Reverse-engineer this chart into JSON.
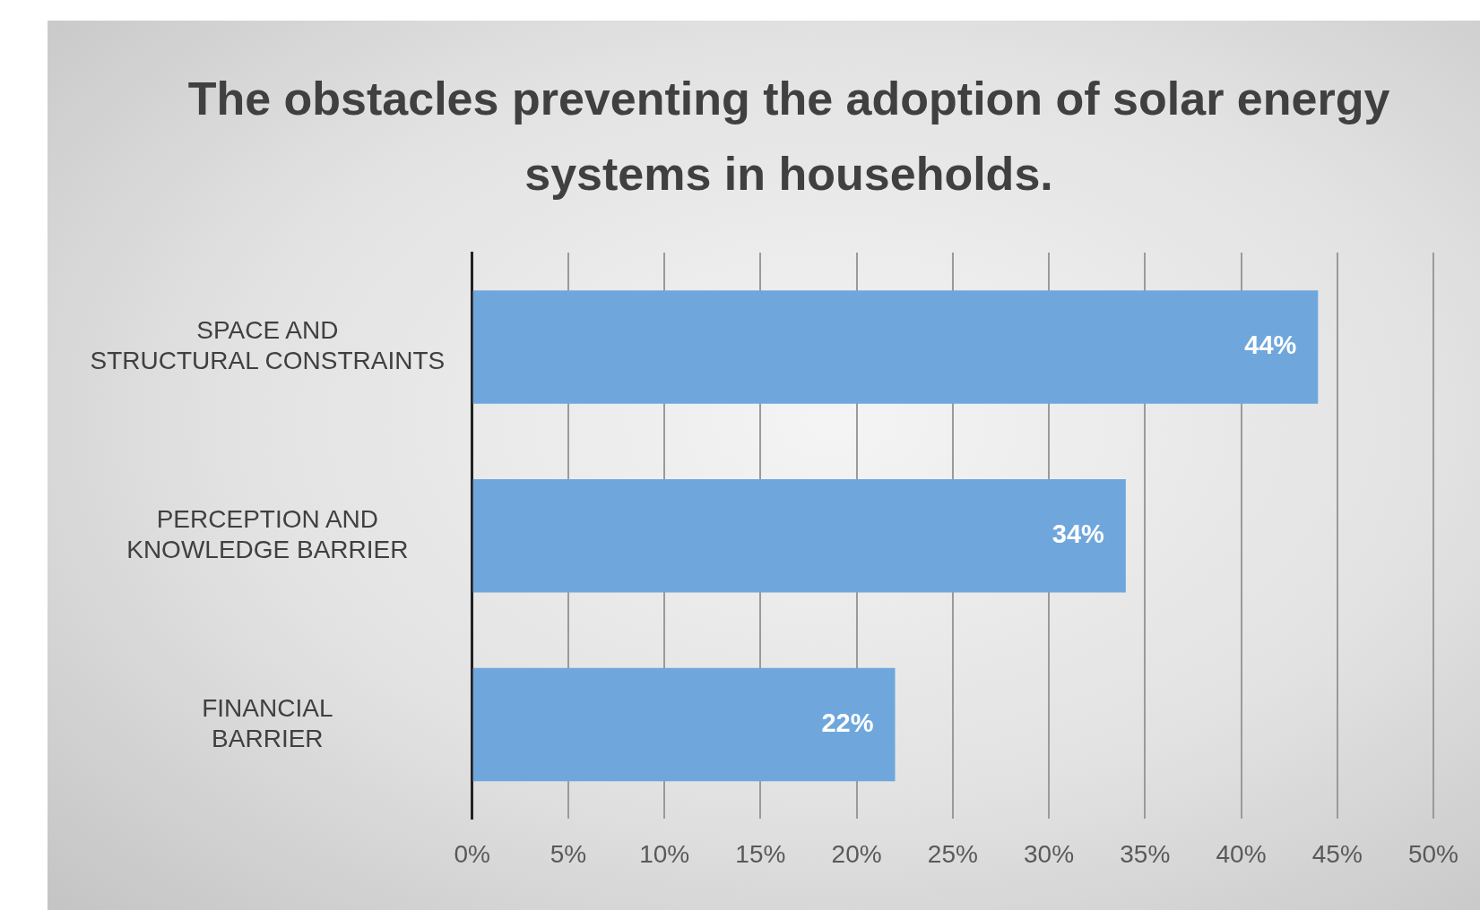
{
  "chart_data": {
    "type": "bar",
    "orientation": "horizontal",
    "title": "The obstacles preventing the adoption of solar energy systems in households.",
    "categories": [
      "SPACE AND STRUCTURAL CONSTRAINTS",
      "PERCEPTION AND KNOWLEDGE BARRIER",
      "FINANCIAL BARRIER"
    ],
    "values": [
      44,
      34,
      22
    ],
    "color": "#6fa7dc",
    "value_labels": [
      "44%",
      "34%",
      "22%"
    ],
    "xlim": [
      0,
      50
    ],
    "xticks": [
      {
        "value": 0,
        "label": "0%"
      },
      {
        "value": 5,
        "label": "5%"
      },
      {
        "value": 10,
        "label": "10%"
      },
      {
        "value": 15,
        "label": "15%"
      },
      {
        "value": 20,
        "label": "20%"
      },
      {
        "value": 25,
        "label": "25%"
      },
      {
        "value": 30,
        "label": "30%"
      },
      {
        "value": 35,
        "label": "35%"
      },
      {
        "value": 40,
        "label": "40%"
      },
      {
        "value": 45,
        "label": "45%"
      },
      {
        "value": 50,
        "label": "50%"
      }
    ],
    "grid": "x",
    "legend": false
  }
}
